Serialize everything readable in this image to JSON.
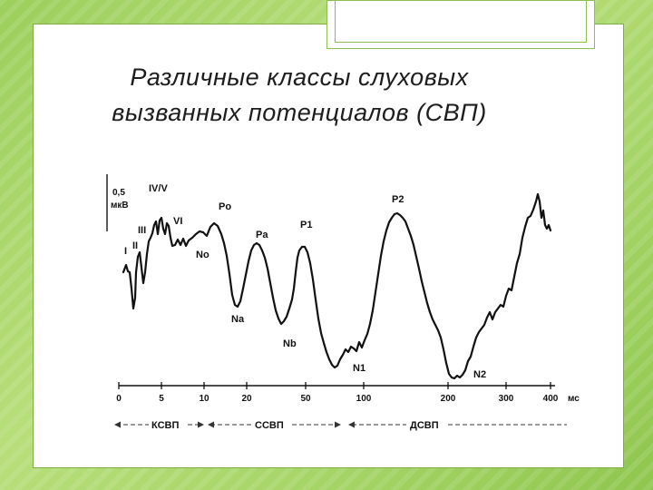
{
  "slide": {
    "title_line1": "Различные классы слуховых",
    "title_line2": "вызванных потенциалов (СВП)"
  },
  "figure": {
    "scale_value": "0,5",
    "scale_unit": "мкВ",
    "peaks": {
      "I": "I",
      "II": "II",
      "III": "III",
      "IV_V": "IV/V",
      "VI": "VI",
      "No": "No",
      "Po": "Po",
      "Na": "Na",
      "Pa": "Pa",
      "Nb": "Nb",
      "P1": "P1",
      "N1": "N1",
      "P2": "P2",
      "N2": "N2"
    },
    "x_ticks": [
      "0",
      "5",
      "10",
      "20",
      "50",
      "100",
      "200",
      "300",
      "400"
    ],
    "x_unit": "мс",
    "bands": [
      "КСВП",
      "ССВП",
      "ДСВП"
    ]
  }
}
